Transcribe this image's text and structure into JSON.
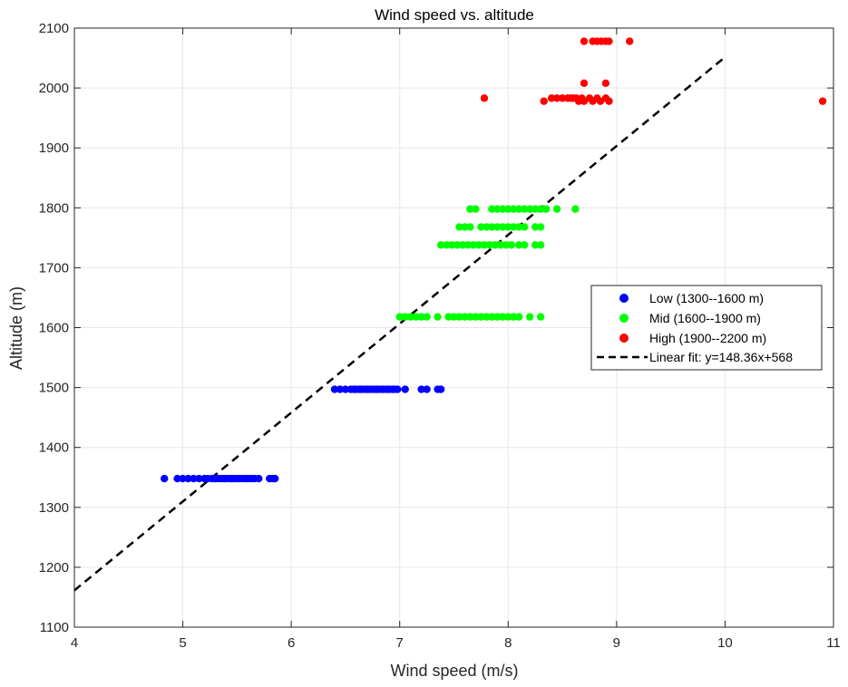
{
  "chart_data": {
    "type": "scatter",
    "title": "Wind speed vs. altitude",
    "xlabel": "Wind speed (m/s)",
    "ylabel": "Altitude (m)",
    "xlim": [
      4,
      11
    ],
    "ylim": [
      1100,
      2100
    ],
    "xticks": [
      "4",
      "5",
      "6",
      "7",
      "8",
      "9",
      "10",
      "11"
    ],
    "yticks": [
      "1100",
      "1200",
      "1300",
      "1400",
      "1500",
      "1600",
      "1700",
      "1800",
      "1900",
      "2000",
      "2100"
    ],
    "grid": true,
    "legend_position": "right",
    "series": [
      {
        "name": "Low (1300--1600 m)",
        "color": "#0000ff",
        "marker": "circle",
        "points": [
          [
            4.83,
            1348
          ],
          [
            4.95,
            1348
          ],
          [
            5.0,
            1348
          ],
          [
            5.05,
            1348
          ],
          [
            5.1,
            1348
          ],
          [
            5.15,
            1348
          ],
          [
            5.2,
            1348
          ],
          [
            5.23,
            1348
          ],
          [
            5.27,
            1348
          ],
          [
            5.3,
            1348
          ],
          [
            5.33,
            1348
          ],
          [
            5.36,
            1348
          ],
          [
            5.38,
            1348
          ],
          [
            5.4,
            1348
          ],
          [
            5.43,
            1348
          ],
          [
            5.45,
            1348
          ],
          [
            5.47,
            1348
          ],
          [
            5.5,
            1348
          ],
          [
            5.52,
            1348
          ],
          [
            5.55,
            1348
          ],
          [
            5.58,
            1348
          ],
          [
            5.6,
            1348
          ],
          [
            5.63,
            1348
          ],
          [
            5.66,
            1348
          ],
          [
            5.7,
            1348
          ],
          [
            5.8,
            1348
          ],
          [
            5.83,
            1348
          ],
          [
            5.85,
            1348
          ],
          [
            6.4,
            1497
          ],
          [
            6.45,
            1497
          ],
          [
            6.5,
            1497
          ],
          [
            6.55,
            1497
          ],
          [
            6.58,
            1497
          ],
          [
            6.6,
            1497
          ],
          [
            6.63,
            1497
          ],
          [
            6.65,
            1497
          ],
          [
            6.68,
            1497
          ],
          [
            6.7,
            1497
          ],
          [
            6.72,
            1497
          ],
          [
            6.75,
            1497
          ],
          [
            6.78,
            1497
          ],
          [
            6.8,
            1497
          ],
          [
            6.83,
            1497
          ],
          [
            6.85,
            1497
          ],
          [
            6.88,
            1497
          ],
          [
            6.9,
            1497
          ],
          [
            6.93,
            1497
          ],
          [
            6.95,
            1497
          ],
          [
            6.98,
            1497
          ],
          [
            7.05,
            1497
          ],
          [
            7.2,
            1497
          ],
          [
            7.25,
            1497
          ],
          [
            7.35,
            1497
          ],
          [
            7.38,
            1497
          ]
        ]
      },
      {
        "name": "Mid (1600--1900 m)",
        "color": "#00ff00",
        "marker": "circle",
        "points": [
          [
            7.0,
            1618
          ],
          [
            7.05,
            1618
          ],
          [
            7.1,
            1618
          ],
          [
            7.15,
            1618
          ],
          [
            7.2,
            1618
          ],
          [
            7.25,
            1618
          ],
          [
            7.35,
            1618
          ],
          [
            7.45,
            1618
          ],
          [
            7.5,
            1618
          ],
          [
            7.55,
            1618
          ],
          [
            7.6,
            1618
          ],
          [
            7.65,
            1618
          ],
          [
            7.7,
            1618
          ],
          [
            7.75,
            1618
          ],
          [
            7.8,
            1618
          ],
          [
            7.85,
            1618
          ],
          [
            7.9,
            1618
          ],
          [
            7.95,
            1618
          ],
          [
            8.0,
            1618
          ],
          [
            8.05,
            1618
          ],
          [
            8.1,
            1618
          ],
          [
            8.2,
            1618
          ],
          [
            8.3,
            1618
          ],
          [
            7.38,
            1738
          ],
          [
            7.43,
            1738
          ],
          [
            7.48,
            1738
          ],
          [
            7.53,
            1738
          ],
          [
            7.58,
            1738
          ],
          [
            7.63,
            1738
          ],
          [
            7.68,
            1738
          ],
          [
            7.73,
            1738
          ],
          [
            7.78,
            1738
          ],
          [
            7.83,
            1738
          ],
          [
            7.88,
            1738
          ],
          [
            7.93,
            1738
          ],
          [
            7.98,
            1738
          ],
          [
            8.03,
            1738
          ],
          [
            8.1,
            1738
          ],
          [
            8.15,
            1738
          ],
          [
            8.25,
            1738
          ],
          [
            8.3,
            1738
          ],
          [
            7.55,
            1768
          ],
          [
            7.6,
            1768
          ],
          [
            7.65,
            1768
          ],
          [
            7.75,
            1768
          ],
          [
            7.8,
            1768
          ],
          [
            7.85,
            1768
          ],
          [
            7.9,
            1768
          ],
          [
            7.95,
            1768
          ],
          [
            8.0,
            1768
          ],
          [
            8.05,
            1768
          ],
          [
            8.1,
            1768
          ],
          [
            8.15,
            1768
          ],
          [
            8.25,
            1768
          ],
          [
            8.3,
            1768
          ],
          [
            7.65,
            1798
          ],
          [
            7.7,
            1798
          ],
          [
            7.85,
            1798
          ],
          [
            7.9,
            1798
          ],
          [
            7.95,
            1798
          ],
          [
            8.0,
            1798
          ],
          [
            8.05,
            1798
          ],
          [
            8.1,
            1798
          ],
          [
            8.15,
            1798
          ],
          [
            8.2,
            1798
          ],
          [
            8.25,
            1798
          ],
          [
            8.3,
            1798
          ],
          [
            8.35,
            1798
          ],
          [
            8.45,
            1798
          ],
          [
            8.62,
            1798
          ]
        ]
      },
      {
        "name": "High (1900--2200 m)",
        "color": "#ff0000",
        "marker": "circle",
        "points": [
          [
            7.78,
            1983
          ],
          [
            8.33,
            1978
          ],
          [
            8.4,
            1983
          ],
          [
            8.45,
            1983
          ],
          [
            8.5,
            1983
          ],
          [
            8.55,
            1983
          ],
          [
            8.58,
            1983
          ],
          [
            8.6,
            1983
          ],
          [
            8.63,
            1983
          ],
          [
            8.65,
            1978
          ],
          [
            8.68,
            1983
          ],
          [
            8.7,
            1978
          ],
          [
            8.75,
            1983
          ],
          [
            8.78,
            1978
          ],
          [
            8.82,
            1983
          ],
          [
            8.85,
            1978
          ],
          [
            8.9,
            1983
          ],
          [
            8.93,
            1978
          ],
          [
            8.7,
            2008
          ],
          [
            8.9,
            2008
          ],
          [
            8.7,
            2078
          ],
          [
            8.78,
            2078
          ],
          [
            8.82,
            2078
          ],
          [
            8.86,
            2078
          ],
          [
            8.9,
            2078
          ],
          [
            8.93,
            2078
          ],
          [
            9.12,
            2078
          ],
          [
            10.9,
            1978
          ]
        ]
      }
    ],
    "fit_line": {
      "name": "Linear fit: y=148.36x+568",
      "color": "#000000",
      "style": "dashed",
      "slope": 148.36,
      "intercept": 568,
      "x_range": [
        4,
        10
      ]
    }
  }
}
